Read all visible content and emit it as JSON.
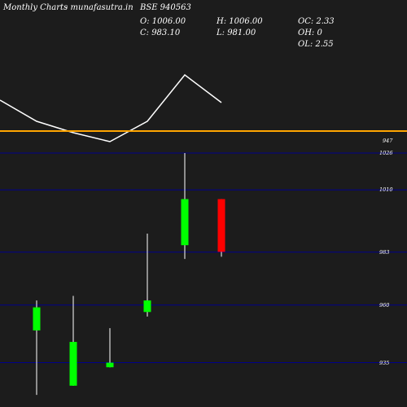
{
  "header": {
    "title": "Monthly Charts",
    "source": "- munafasutra.in",
    "symbol": "BSE 940563",
    "open": "O: 1006.00",
    "close": "C: 983.10",
    "high": "H: 1006.00",
    "low": "L: 981.00",
    "oc": "OC: 2.33",
    "oh": "OH: 0",
    "ol": "OL: 2.55"
  },
  "colors": {
    "background": "#1c1c1c",
    "up": "#00ff00",
    "down": "#ff0000",
    "grid": "#00008b",
    "indicator": "#ffa500",
    "line": "#ffffff"
  },
  "chart_data": {
    "type": "candlestick",
    "y_ticks": [
      1026,
      1010,
      983,
      960,
      935
    ],
    "candles": [
      {
        "open": 949,
        "high": 962,
        "low": 921,
        "close": 959
      },
      {
        "open": 925,
        "high": 964,
        "low": 925,
        "close": 944
      },
      {
        "open": 933,
        "high": 950,
        "low": 933,
        "close": 935
      },
      {
        "open": 957,
        "high": 991,
        "low": 955,
        "close": 962
      },
      {
        "open": 986,
        "high": 1026,
        "low": 980,
        "close": 1006
      },
      {
        "open": 1006,
        "high": 1006,
        "low": 981,
        "close": 983.1
      }
    ],
    "reference_line": {
      "value": 947,
      "label": "947"
    },
    "indicator_line": [
      116,
      105,
      100,
      97,
      105,
      126,
      115
    ]
  }
}
